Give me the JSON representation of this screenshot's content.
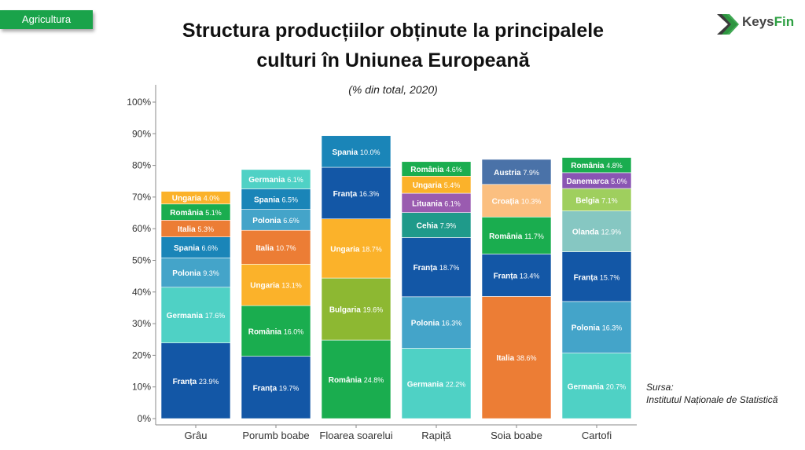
{
  "header": {
    "tag_label": "Agricultura",
    "logo_text_a": "Keys",
    "logo_text_b": "Fin",
    "logo_colors": [
      "#2ea043",
      "#3b3b3b"
    ]
  },
  "source": {
    "label": "Sursa:",
    "text": "Institutul Naționale de Statistică"
  },
  "chart_data": {
    "type": "bar",
    "stacked": true,
    "title_line1": "Structura producțiilor obținute la principalele",
    "title_line2": "culturi în Uniunea Europeană",
    "subtitle": "(% din total, 2020)",
    "ylim": [
      0,
      100
    ],
    "yticks": [
      "0%",
      "10%",
      "20%",
      "30%",
      "40%",
      "50%",
      "60%",
      "70%",
      "80%",
      "90%",
      "100%"
    ],
    "categories": [
      "Grâu",
      "Porumb boabe",
      "Floarea soarelui",
      "Rapiță",
      "Soia boabe",
      "Cartofi"
    ],
    "stacks": [
      [
        {
          "name": "Franța",
          "value": 23.9,
          "label": "23.9%",
          "color": "#1357a6"
        },
        {
          "name": "Germania",
          "value": 17.6,
          "label": "17.6%",
          "color": "#4fd1c5"
        },
        {
          "name": "Polonia",
          "value": 9.3,
          "label": "9.3%",
          "color": "#44a4c9"
        },
        {
          "name": "Spania",
          "value": 6.6,
          "label": "6.6%",
          "color": "#1a85b8"
        },
        {
          "name": "Italia",
          "value": 5.3,
          "label": "5.3%",
          "color": "#ec7d35"
        },
        {
          "name": "România",
          "value": 5.1,
          "label": "5.1%",
          "color": "#1aad4f"
        },
        {
          "name": "Ungaria",
          "value": 4.0,
          "label": "4.0%",
          "color": "#fbb22a"
        }
      ],
      [
        {
          "name": "Franța",
          "value": 19.7,
          "label": "19.7%",
          "color": "#1357a6"
        },
        {
          "name": "România",
          "value": 16.0,
          "label": "16.0%",
          "color": "#1aad4f"
        },
        {
          "name": "Ungaria",
          "value": 13.1,
          "label": "13.1%",
          "color": "#fbb22a"
        },
        {
          "name": "Italia",
          "value": 10.7,
          "label": "10.7%",
          "color": "#ec7d35"
        },
        {
          "name": "Polonia",
          "value": 6.6,
          "label": "6.6%",
          "color": "#44a4c9"
        },
        {
          "name": "Spania",
          "value": 6.5,
          "label": "6.5%",
          "color": "#1a85b8"
        },
        {
          "name": "Germania",
          "value": 6.1,
          "label": "6.1%",
          "color": "#4fd1c5"
        }
      ],
      [
        {
          "name": "România",
          "value": 24.8,
          "label": "24.8%",
          "color": "#1aad4f"
        },
        {
          "name": "Bulgaria",
          "value": 19.6,
          "label": "19.6%",
          "color": "#8db832"
        },
        {
          "name": "Ungaria",
          "value": 18.7,
          "label": "18.7%",
          "color": "#fbb22a"
        },
        {
          "name": "Franța",
          "value": 16.3,
          "label": "16.3%",
          "color": "#1357a6"
        },
        {
          "name": "Spania",
          "value": 10.0,
          "label": "10.0%",
          "color": "#1a85b8"
        }
      ],
      [
        {
          "name": "Germania",
          "value": 22.2,
          "label": "22.2%",
          "color": "#4fd1c5"
        },
        {
          "name": "Polonia",
          "value": 16.3,
          "label": "16.3%",
          "color": "#44a4c9"
        },
        {
          "name": "Franța",
          "value": 18.7,
          "label": "18.7%",
          "color": "#1357a6"
        },
        {
          "name": "Cehia",
          "value": 7.9,
          "label": "7.9%",
          "color": "#1f9a8a"
        },
        {
          "name": "Lituania",
          "value": 6.1,
          "label": "6.1%",
          "color": "#9a5bb0"
        },
        {
          "name": "Ungaria",
          "value": 5.4,
          "label": "5.4%",
          "color": "#fbb22a"
        },
        {
          "name": "România",
          "value": 4.6,
          "label": "4.6%",
          "color": "#1aad4f"
        }
      ],
      [
        {
          "name": "Italia",
          "value": 38.6,
          "label": "38.6%",
          "color": "#ec7d35"
        },
        {
          "name": "Franța",
          "value": 13.4,
          "label": "13.4%",
          "color": "#1357a6"
        },
        {
          "name": "România",
          "value": 11.7,
          "label": "11.7%",
          "color": "#1aad4f"
        },
        {
          "name": "Croația",
          "value": 10.3,
          "label": "10.3%",
          "color": "#fbbf80"
        },
        {
          "name": "Austria",
          "value": 7.9,
          "label": "7.9%",
          "color": "#4a72a8"
        }
      ],
      [
        {
          "name": "Germania",
          "value": 20.7,
          "label": "20.7%",
          "color": "#4fd1c5"
        },
        {
          "name": "Polonia",
          "value": 16.3,
          "label": "16.3%",
          "color": "#44a4c9"
        },
        {
          "name": "Franța",
          "value": 15.7,
          "label": "15.7%",
          "color": "#1357a6"
        },
        {
          "name": "Olanda",
          "value": 12.9,
          "label": "12.9%",
          "color": "#86c7c2"
        },
        {
          "name": "Belgia",
          "value": 7.1,
          "label": "7.1%",
          "color": "#9fcf5e"
        },
        {
          "name": "Danemarca",
          "value": 5.0,
          "label": "5.0%",
          "color": "#8a55b3"
        },
        {
          "name": "România",
          "value": 4.8,
          "label": "4.8%",
          "color": "#1aad4f"
        }
      ]
    ]
  }
}
